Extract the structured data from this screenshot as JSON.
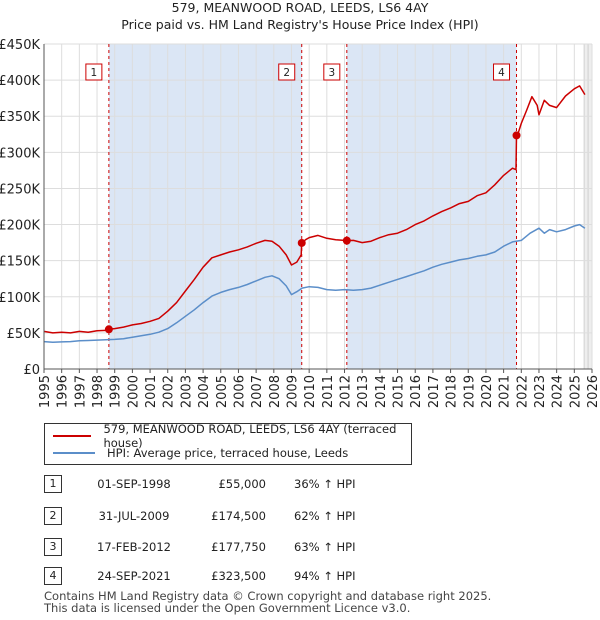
{
  "chart_data": {
    "type": "line",
    "title": "579, MEANWOOD ROAD, LEEDS, LS6 4AY",
    "subtitle": "Price paid vs. HM Land Registry's House Price Index (HPI)",
    "xlim": [
      1995,
      2026
    ],
    "ylim": [
      0,
      450000
    ],
    "x_ticks": [
      "1995",
      "1996",
      "1997",
      "1998",
      "1999",
      "2000",
      "2001",
      "2002",
      "2003",
      "2004",
      "2005",
      "2006",
      "2007",
      "2008",
      "2009",
      "2010",
      "2011",
      "2012",
      "2013",
      "2014",
      "2015",
      "2016",
      "2017",
      "2018",
      "2019",
      "2020",
      "2021",
      "2022",
      "2023",
      "2024",
      "2025",
      "2026"
    ],
    "y_ticks": [
      {
        "value": 0,
        "label": "£0"
      },
      {
        "value": 50000,
        "label": "£50K"
      },
      {
        "value": 100000,
        "label": "£100K"
      },
      {
        "value": 150000,
        "label": "£150K"
      },
      {
        "value": 200000,
        "label": "£200K"
      },
      {
        "value": 250000,
        "label": "£250K"
      },
      {
        "value": 300000,
        "label": "£300K"
      },
      {
        "value": 350000,
        "label": "£350K"
      },
      {
        "value": 400000,
        "label": "£400K"
      },
      {
        "value": 450000,
        "label": "£450K"
      }
    ],
    "series": [
      {
        "name": "579, MEANWOOD ROAD, LEEDS, LS6 4AY (terraced house)",
        "color": "#cc0000",
        "x": [
          1995.0,
          1995.5,
          1996.0,
          1996.5,
          1997.0,
          1997.5,
          1998.0,
          1998.5,
          1998.67,
          1999.0,
          1999.5,
          2000.0,
          2000.5,
          2001.0,
          2001.5,
          2002.0,
          2002.5,
          2003.0,
          2003.5,
          2004.0,
          2004.5,
          2005.0,
          2005.5,
          2006.0,
          2006.5,
          2007.0,
          2007.5,
          2007.9,
          2008.3,
          2008.7,
          2009.0,
          2009.3,
          2009.55,
          2009.58,
          2009.8,
          2010.0,
          2010.5,
          2011.0,
          2011.5,
          2012.0,
          2012.13,
          2012.5,
          2013.0,
          2013.5,
          2014.0,
          2014.5,
          2015.0,
          2015.5,
          2016.0,
          2016.5,
          2017.0,
          2017.5,
          2018.0,
          2018.5,
          2019.0,
          2019.5,
          2020.0,
          2020.5,
          2021.0,
          2021.5,
          2021.7,
          2021.73,
          2021.8,
          2022.0,
          2022.3,
          2022.6,
          2022.9,
          2023.0,
          2023.3,
          2023.6,
          2024.0,
          2024.5,
          2025.0,
          2025.3,
          2025.6
        ],
        "y": [
          52000,
          50000,
          51000,
          50000,
          52000,
          51000,
          53000,
          53500,
          55000,
          56000,
          58000,
          61000,
          63000,
          66000,
          70000,
          80000,
          92000,
          108000,
          124000,
          141000,
          154000,
          158000,
          162000,
          165000,
          169000,
          174000,
          178000,
          177000,
          170000,
          158000,
          144000,
          148000,
          158000,
          174500,
          179000,
          182000,
          185000,
          181000,
          179000,
          178000,
          177750,
          178000,
          175000,
          177000,
          182000,
          186000,
          188000,
          193000,
          200000,
          205000,
          212000,
          218000,
          223000,
          229000,
          232000,
          240000,
          244000,
          255000,
          268000,
          278000,
          276000,
          323500,
          325000,
          340000,
          358000,
          377000,
          365000,
          352000,
          372000,
          365000,
          362000,
          378000,
          388000,
          392000,
          380000
        ]
      },
      {
        "name": "HPI: Average price, terraced house, Leeds",
        "color": "#5b8ec9",
        "x": [
          1995.0,
          1995.5,
          1996.0,
          1996.5,
          1997.0,
          1997.5,
          1998.0,
          1998.5,
          1999.0,
          1999.5,
          2000.0,
          2000.5,
          2001.0,
          2001.5,
          2002.0,
          2002.5,
          2003.0,
          2003.5,
          2004.0,
          2004.5,
          2005.0,
          2005.5,
          2006.0,
          2006.5,
          2007.0,
          2007.5,
          2007.9,
          2008.3,
          2008.7,
          2009.0,
          2009.3,
          2009.6,
          2010.0,
          2010.5,
          2011.0,
          2011.5,
          2012.0,
          2012.5,
          2013.0,
          2013.5,
          2014.0,
          2014.5,
          2015.0,
          2015.5,
          2016.0,
          2016.5,
          2017.0,
          2017.5,
          2018.0,
          2018.5,
          2019.0,
          2019.5,
          2020.0,
          2020.5,
          2021.0,
          2021.5,
          2022.0,
          2022.5,
          2023.0,
          2023.3,
          2023.6,
          2024.0,
          2024.5,
          2025.0,
          2025.3,
          2025.6
        ],
        "y": [
          38000,
          37000,
          37500,
          38000,
          39000,
          39500,
          40000,
          40500,
          41000,
          42000,
          44000,
          46000,
          48000,
          51000,
          56000,
          64000,
          73000,
          82000,
          92000,
          101000,
          106000,
          110000,
          113000,
          117000,
          122000,
          127000,
          129000,
          125000,
          115000,
          103000,
          107000,
          112000,
          114000,
          113000,
          110000,
          109000,
          110000,
          109000,
          110000,
          112000,
          116000,
          120000,
          124000,
          128000,
          132000,
          136000,
          141000,
          145000,
          148000,
          151000,
          153000,
          156000,
          158000,
          162000,
          170000,
          176000,
          178000,
          188000,
          195000,
          188000,
          193000,
          190000,
          193000,
          198000,
          200000,
          195000
        ]
      }
    ],
    "sales": [
      {
        "marker": "1",
        "x": 1998.67,
        "y": 55000
      },
      {
        "marker": "2",
        "x": 2009.58,
        "y": 174500
      },
      {
        "marker": "3",
        "x": 2012.13,
        "y": 177750
      },
      {
        "marker": "4",
        "x": 2021.73,
        "y": 323500
      }
    ],
    "shaded_after": 2025.55
  },
  "legend": {
    "property_label": "579, MEANWOOD ROAD, LEEDS, LS6 4AY (terraced house)",
    "hpi_label": "HPI: Average price, terraced house, Leeds"
  },
  "transactions": [
    {
      "num": "1",
      "date": "01-SEP-1998",
      "price": "£55,000",
      "hpi": "36% ↑ HPI"
    },
    {
      "num": "2",
      "date": "31-JUL-2009",
      "price": "£174,500",
      "hpi": "62% ↑ HPI"
    },
    {
      "num": "3",
      "date": "17-FEB-2012",
      "price": "£177,750",
      "hpi": "63% ↑ HPI"
    },
    {
      "num": "4",
      "date": "24-SEP-2021",
      "price": "£323,500",
      "hpi": "94% ↑ HPI"
    }
  ],
  "footer": {
    "line1": "Contains HM Land Registry data © Crown copyright and database right 2025.",
    "line2": "This data is licensed under the Open Government Licence v3.0."
  },
  "colors": {
    "property": "#cc0000",
    "hpi": "#5b8ec9",
    "highlight": "#dbe6f5",
    "grid": "#dddddd"
  }
}
